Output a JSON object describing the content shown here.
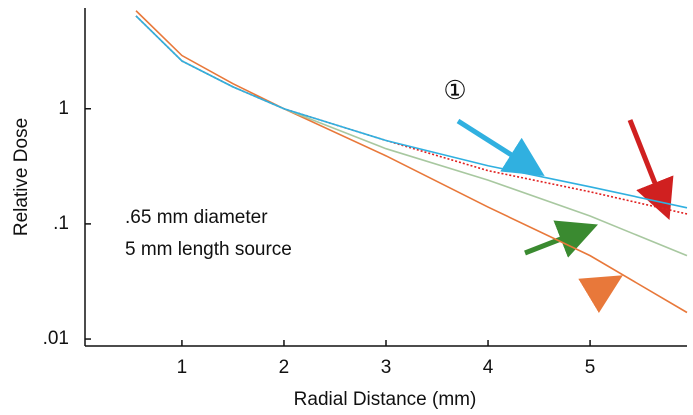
{
  "chart_data": {
    "type": "line",
    "xlabel": "Radial Distance (mm)",
    "ylabel": "Relative Dose",
    "annotations": [
      "①",
      ".65 mm diameter",
      "5 mm length source"
    ],
    "x": [
      0.55,
      1,
      1.5,
      2,
      3,
      4,
      5,
      5.95
    ],
    "series": [
      {
        "color": "#e8783a",
        "values": [
          7.1,
          2.9,
          1.65,
          1,
          0.39,
          0.14,
          0.053,
          0.017
        ]
      },
      {
        "color": "#a8c8a0",
        "values": [
          6.4,
          2.6,
          1.55,
          1,
          0.45,
          0.24,
          0.117,
          0.053
        ]
      },
      {
        "color": "#e02020",
        "dashed": true,
        "values": [
          6.4,
          2.6,
          1.55,
          1,
          0.53,
          0.29,
          0.19,
          0.122
        ]
      },
      {
        "color": "#30b0e0",
        "values": [
          6.4,
          2.6,
          1.55,
          1,
          0.53,
          0.32,
          0.21,
          0.138
        ]
      }
    ],
    "xlim": [
      0.05,
      5.95
    ],
    "xticks": [
      1,
      2,
      3,
      4,
      5
    ],
    "ylim": [
      0.0087,
      7.5
    ],
    "yticks": [
      {
        "value": 0.01,
        "label": ".01"
      },
      {
        "value": 0.1,
        "label": ".1"
      },
      1
    ],
    "log_y": true,
    "grid": false
  }
}
